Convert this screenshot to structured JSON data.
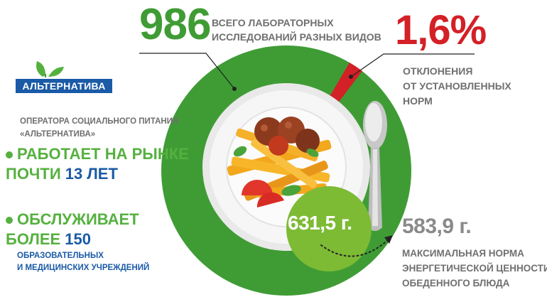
{
  "colors": {
    "green": "#3f9c35",
    "light_green": "#55b13f",
    "red": "#d42027",
    "blue": "#1a5aa6",
    "gray": "#6f6f6f"
  },
  "total": {
    "value": "986",
    "label_lines": [
      "ВСЕГО ЛАБОРАТОРНЫХ",
      "ИССЛЕДОВАНИЙ РАЗНЫХ ВИДОВ"
    ]
  },
  "deviation": {
    "value": "1,6%",
    "label_lines": [
      "ОТКЛОНЕНИЯ",
      "ОТ УСТАНОВЛЕННЫХ",
      "НОРМ"
    ],
    "share_percent": 1.6
  },
  "logo": {
    "name": "АЛЬТЕРНАТИВА",
    "icon": "leaf-logo-icon"
  },
  "operator": {
    "lines": [
      "ОПЕРАТОРА СОЦИАЛЬНОГО ПИТАНИЯ",
      "«АЛЬТЕРНАТИВА»"
    ]
  },
  "bullet1": {
    "line1": "РАБОТАЕТ НА РЫНКЕ",
    "line2_prefix": "ПОЧТИ ",
    "line2_value": "13 ЛЕТ"
  },
  "bullet2": {
    "line1": "ОБСЛУЖИВАЕТ",
    "line2_prefix": "БОЛЕЕ ",
    "line2_value": "150",
    "sub_lines": [
      "ОБРАЗОВАТЕЛЬНЫХ",
      "И МЕДИЦИНСКИХ УЧРЕЖДЕНИЙ"
    ]
  },
  "actual": {
    "value": "631,5 г."
  },
  "norm": {
    "value": "583,9 г.",
    "label_lines": [
      "МАКСИМАЛЬНАЯ НОРМА",
      "ЭНЕРГЕТИЧЕСКОЙ ЦЕННОСТИ",
      "ОБЕДЕННОГО БЛЮДА"
    ]
  },
  "illustration": {
    "plate": "plate-with-pasta-and-meatballs-icon",
    "spoon": "spoon-icon"
  }
}
